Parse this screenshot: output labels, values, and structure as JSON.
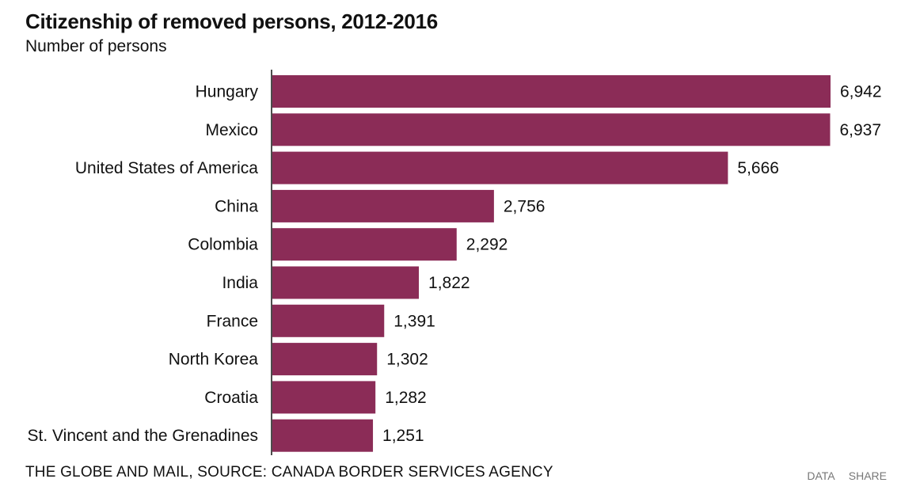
{
  "chart_data": {
    "type": "bar",
    "orientation": "horizontal",
    "title": "Citizenship of removed persons, 2012-2016",
    "subtitle": "Number of persons",
    "xlabel": "",
    "ylabel": "",
    "categories": [
      "Hungary",
      "Mexico",
      "United States of America",
      "China",
      "Colombia",
      "India",
      "France",
      "North Korea",
      "Croatia",
      "St. Vincent and the Grenadines"
    ],
    "values": [
      6942,
      6937,
      5666,
      2756,
      2292,
      1822,
      1391,
      1302,
      1282,
      1251
    ],
    "value_labels": [
      "6,942",
      "6,937",
      "5,666",
      "2,756",
      "2,292",
      "1,822",
      "1,391",
      "1,302",
      "1,282",
      "1,251"
    ],
    "xlim": [
      0,
      6942
    ],
    "grid": false,
    "legend": "none"
  },
  "colors": {
    "bar": "#8b2c57",
    "axis": "#111111",
    "text": "#111111",
    "links": "#777777"
  },
  "footer": {
    "source": "THE GLOBE AND MAIL, SOURCE: CANADA BORDER SERVICES AGENCY",
    "data_link": "DATA",
    "share_link": "SHARE"
  }
}
